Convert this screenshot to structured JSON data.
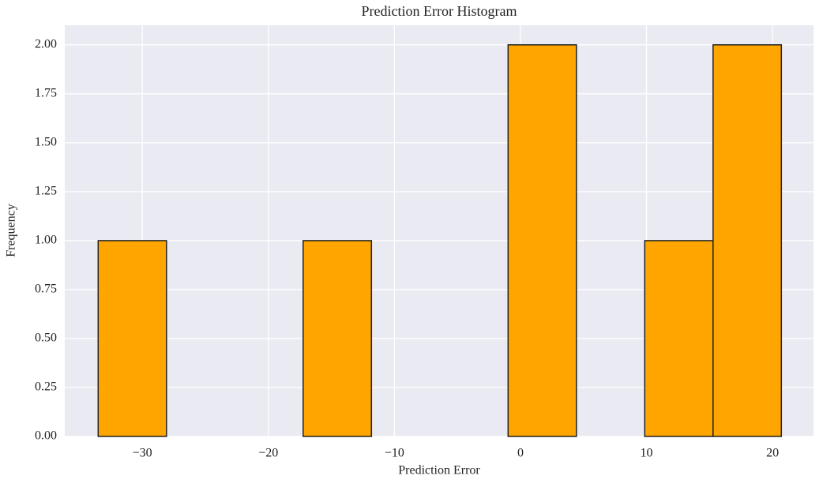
{
  "chart_data": {
    "type": "histogram",
    "title": "Prediction Error Histogram",
    "x_label": "Prediction Error",
    "y_label": "Frequency",
    "bins": [
      -33.5,
      -28.08,
      -22.66,
      -17.24,
      -11.82,
      -6.4,
      -0.98,
      4.44,
      9.86,
      15.28,
      20.7
    ],
    "counts": [
      1,
      0,
      0,
      1,
      0,
      0,
      2,
      0,
      1,
      2
    ],
    "color": "#ffa500",
    "edgecolor": "#222222",
    "xlim": [
      -36.15,
      23.25
    ],
    "xticks": [
      {
        "value": -30,
        "label": "−30"
      },
      {
        "value": -20,
        "label": "−20"
      },
      {
        "value": -10,
        "label": "−10"
      },
      0,
      10,
      20
    ],
    "ylim": [
      0,
      2.1
    ],
    "yticks": [
      {
        "value": 0,
        "label": "0.00"
      },
      {
        "value": 0.25,
        "label": "0.25"
      },
      {
        "value": 0.5,
        "label": "0.50"
      },
      {
        "value": 0.75,
        "label": "0.75"
      },
      {
        "value": 1,
        "label": "1.00"
      },
      {
        "value": 1.25,
        "label": "1.25"
      },
      {
        "value": 1.5,
        "label": "1.50"
      },
      {
        "value": 1.75,
        "label": "1.75"
      },
      {
        "value": 2,
        "label": "2.00"
      }
    ],
    "grid": true
  }
}
